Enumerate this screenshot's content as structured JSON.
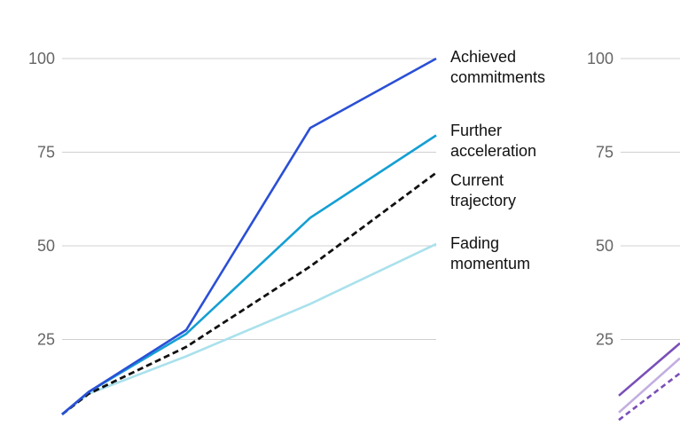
{
  "chart_data": [
    {
      "type": "line",
      "x": [
        0,
        1,
        2,
        3,
        4
      ],
      "ylim": [
        0,
        100
      ],
      "yticks": [
        25,
        50,
        75,
        100
      ],
      "ytick_labels": [
        "25",
        "50",
        "75",
        "100"
      ],
      "grid": true,
      "series": [
        {
          "name": "Achieved commitments",
          "label_lines": [
            "Achieved",
            "commitments"
          ],
          "color": "#2a4fd6",
          "dash": false,
          "values": [
            5,
            11,
            27.5,
            81.5,
            100
          ]
        },
        {
          "name": "Further acceleration",
          "label_lines": [
            "Further",
            "acceleration"
          ],
          "color": "#149fd4",
          "dash": false,
          "values": [
            5,
            11,
            26.5,
            57.5,
            79.5
          ]
        },
        {
          "name": "Current trajectory",
          "label_lines": [
            "Current",
            "trajectory"
          ],
          "color": "#111111",
          "dash": true,
          "values": [
            5,
            10.5,
            23,
            44.5,
            69.5
          ]
        },
        {
          "name": "Fading momentum",
          "label_lines": [
            "Fading",
            "momentum"
          ],
          "color": "#a9e1ec",
          "dash": false,
          "values": [
            5,
            10.5,
            20.5,
            34.5,
            50.5
          ]
        }
      ]
    },
    {
      "type": "line",
      "ylim": [
        0,
        100
      ],
      "yticks": [
        25,
        50,
        75,
        100
      ],
      "ytick_labels": [
        "25",
        "50",
        "75",
        "100"
      ],
      "grid": true,
      "partially_visible": true,
      "series": [
        {
          "color": "#7a4fb8",
          "dash": false,
          "values": [
            10,
            24
          ]
        },
        {
          "color": "#c2aee0",
          "dash": false,
          "values": [
            5.5,
            20
          ]
        },
        {
          "color": "#7a4fb8",
          "dash": true,
          "values": [
            3.5,
            16
          ]
        }
      ]
    }
  ]
}
